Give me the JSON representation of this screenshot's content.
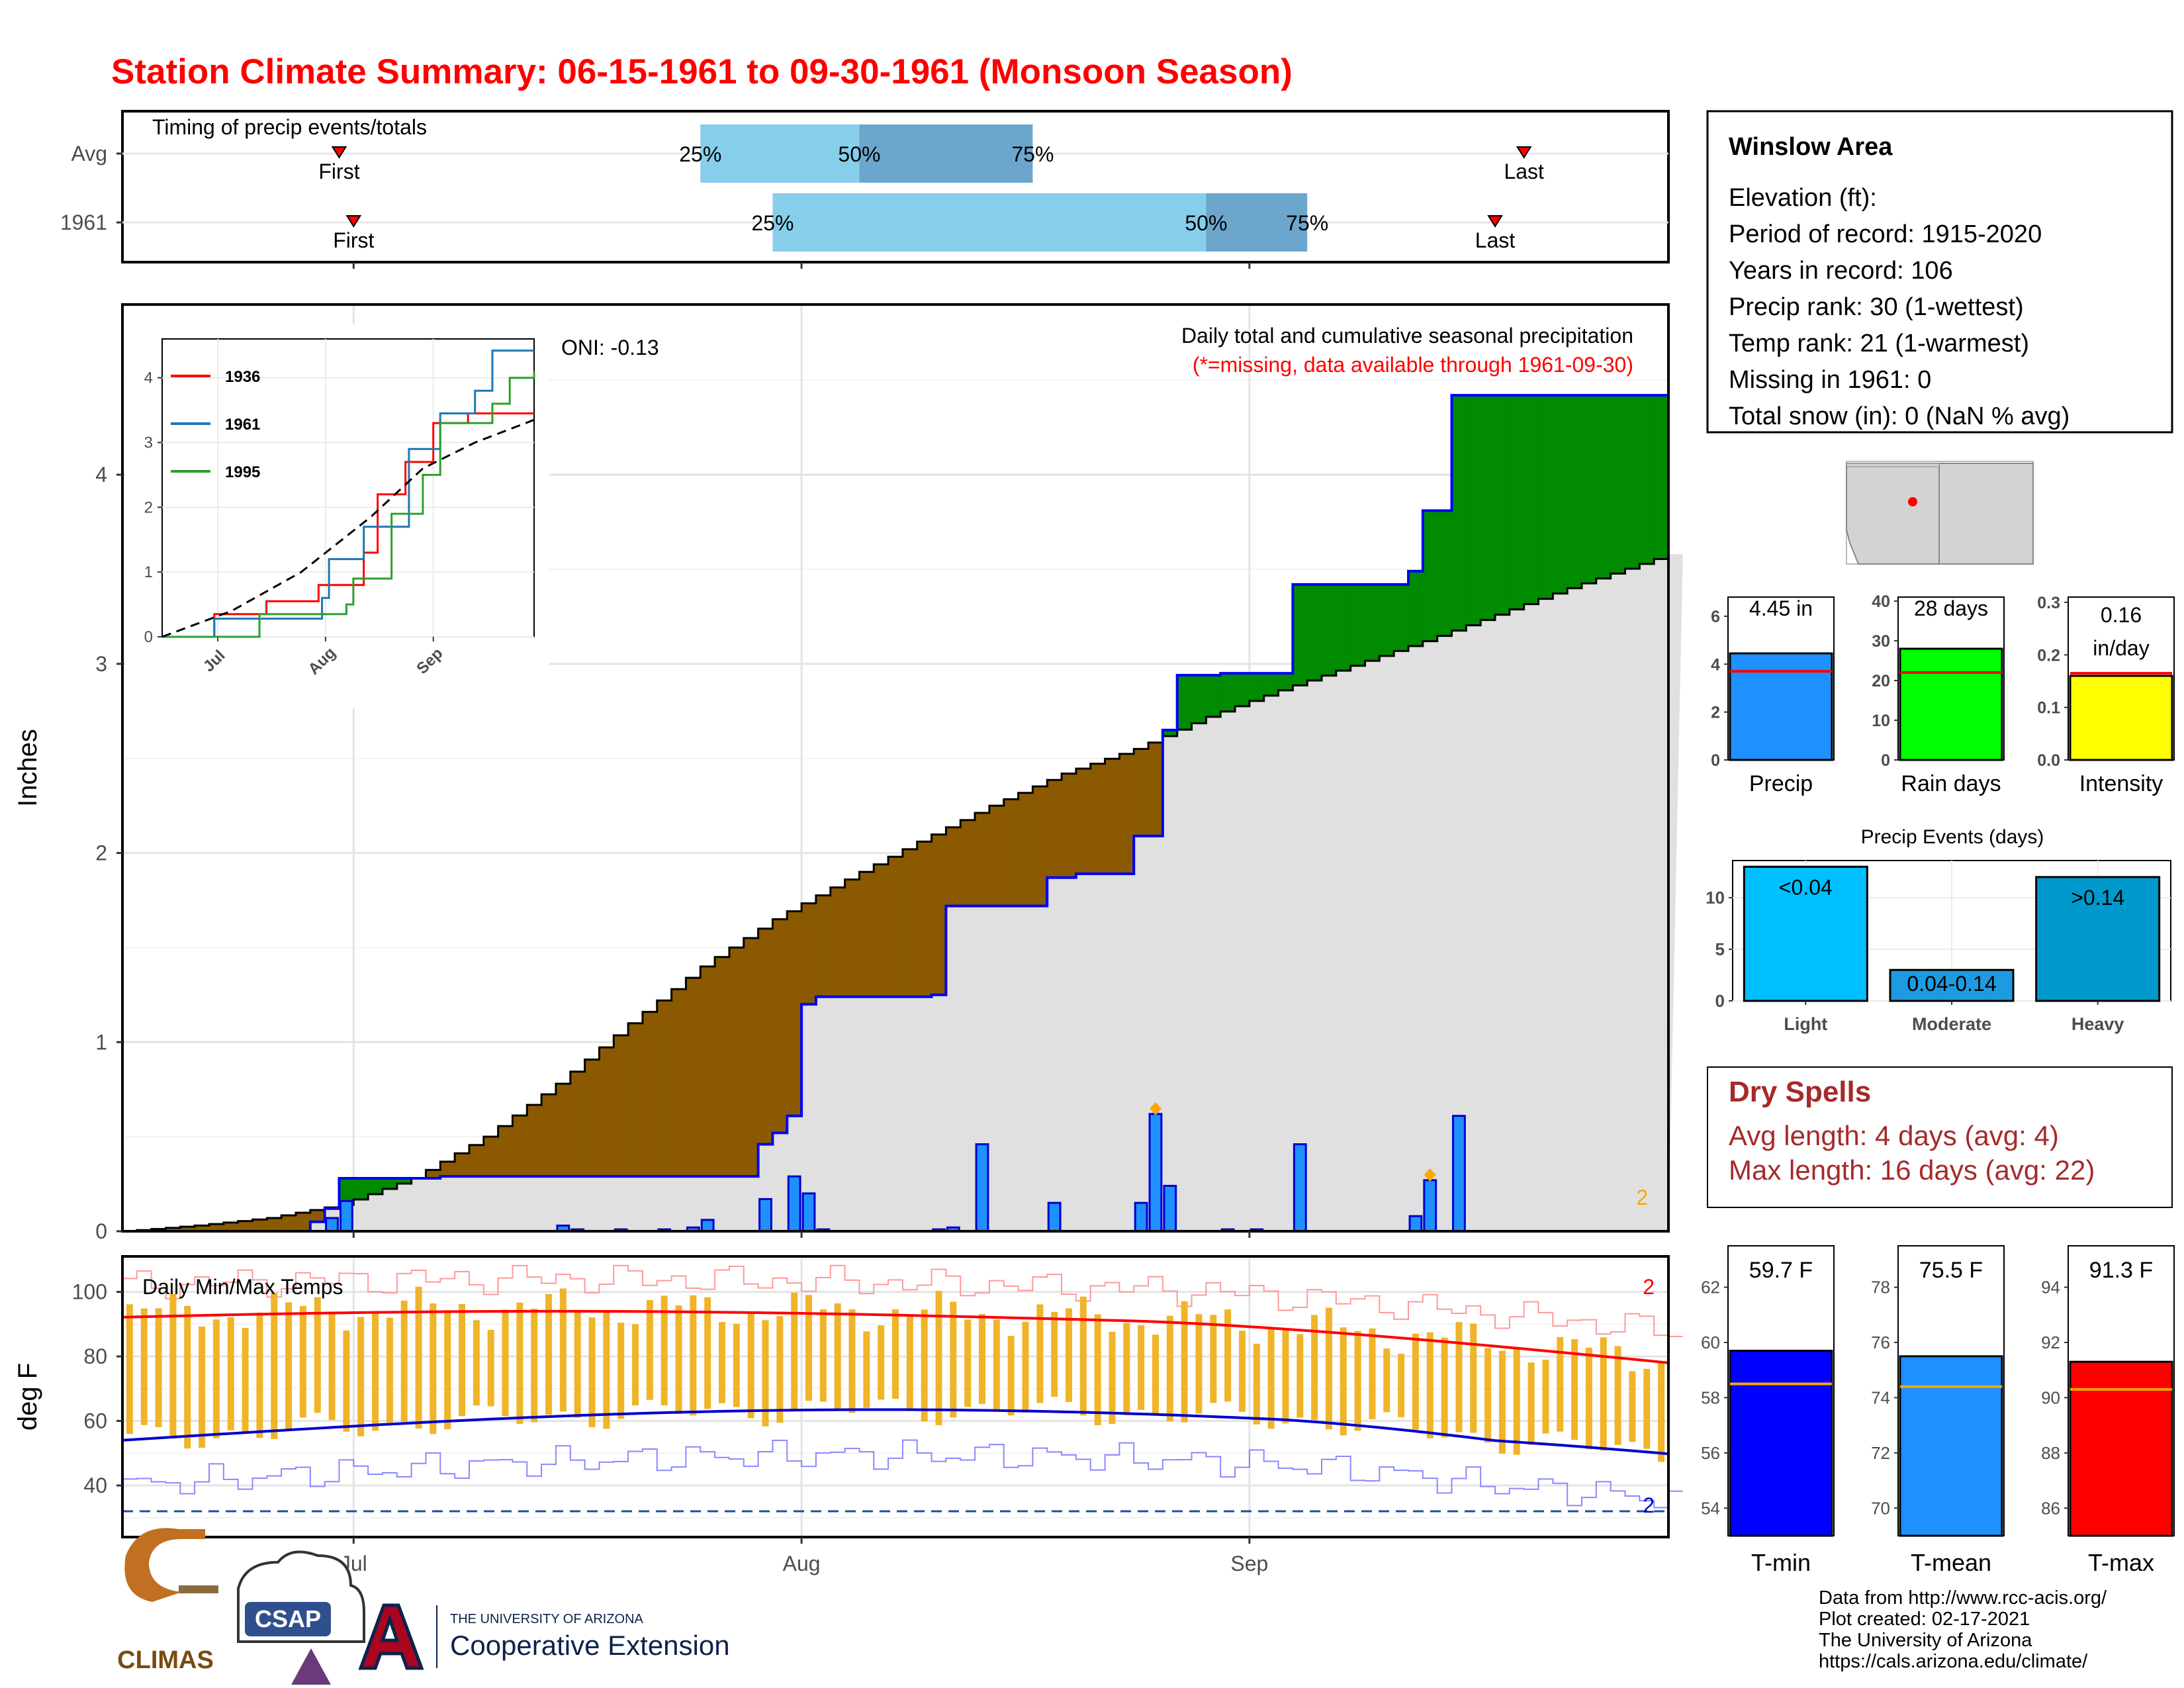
{
  "title": "Station Climate Summary: 06-15-1961 to 09-30-1961 (Monsoon Season)",
  "timing_panel": {
    "label": "Timing of precip events/totals",
    "rows": [
      {
        "name": "Avg",
        "first": "2001-06-30",
        "q25": "2001-07-25",
        "q50": "2001-08-05",
        "q75": "2001-08-17",
        "last": "2001-09-20",
        "first_label": "First",
        "last_label": "Last"
      },
      {
        "name": "1961",
        "first": "2001-07-01",
        "q25": "2001-07-30",
        "q50": "2001-08-29",
        "q75": "2001-09-05",
        "last": "2001-09-18",
        "first_label": "First",
        "last_label": "Last"
      }
    ],
    "pct_labels": [
      "25%",
      "50%",
      "75%"
    ],
    "colors": {
      "lower": "#87CEEB",
      "upper": "#6CA6CD",
      "marker": "#FF0000"
    }
  },
  "station_box": {
    "name": "Winslow Area",
    "lines": [
      "Elevation (ft):",
      "Period of record: 1915-2020",
      "Years in record: 106",
      "Precip rank: 30 (1-wettest)",
      "Temp rank: 21 (1-warmest)",
      "Missing in 1961: 0",
      "Total snow (in): 0 (NaN % avg)"
    ]
  },
  "precip_panel": {
    "ylabel": "Inches",
    "header": "Daily total and cumulative seasonal precipitation",
    "subheader": "(*=missing, data available through 1961-09-30)",
    "oni": "ONI: -0.13",
    "corner_note": "2",
    "colors": {
      "observed_line": "#0000FF",
      "avg_line": "#000000",
      "above": "#008B00",
      "below": "#8B5A00",
      "fill": "#E0E0E0",
      "bars": "#1E90FF",
      "marker": "#FFA500"
    }
  },
  "inset": {
    "series": [
      {
        "name": "1936",
        "color": "#FF0000"
      },
      {
        "name": "1961",
        "color": "#1F77B4"
      },
      {
        "name": "1995",
        "color": "#2CA02C"
      }
    ]
  },
  "stat_bars": [
    {
      "key": "precip",
      "label": "Precip",
      "value_text": "4.45 in",
      "value": 4.45,
      "avg": 3.7,
      "ymax": 6.8,
      "ticks": [
        0,
        2,
        4,
        6
      ],
      "color": "#1E90FF",
      "avg_color": "#FF0000"
    },
    {
      "key": "raindays",
      "label": "Rain days",
      "value_text": "28 days",
      "value": 28,
      "avg": 22,
      "ymax": 41,
      "ticks": [
        0,
        10,
        20,
        30,
        40
      ],
      "color": "#00FF00",
      "avg_color": "#FF0000"
    },
    {
      "key": "intensity",
      "label": "Intensity",
      "value_text": "0.16\nin/day",
      "value": 0.16,
      "avg": 0.165,
      "ymax": 0.31,
      "ticks": [
        "0.0",
        "0.1",
        "0.2",
        "0.3"
      ],
      "color": "#FFFF00",
      "avg_color": "#FF0000"
    }
  ],
  "events_panel": {
    "title": "Precip Events (days)",
    "categories": [
      "Light",
      "Moderate",
      "Heavy"
    ],
    "values": [
      13,
      3,
      12
    ],
    "bar_labels": [
      "<0.04",
      "0.04-0.14",
      ">0.14"
    ],
    "ticks": [
      0,
      5,
      10
    ],
    "colors": [
      "#00BFFF",
      "#1E9BE0",
      "#0099CC"
    ]
  },
  "dry_spells": {
    "title": "Dry Spells",
    "lines": [
      "Avg length: 4 days (avg: 4)",
      "Max length: 16 days (avg: 22)"
    ],
    "color": "#A52A2A"
  },
  "temp_panel": {
    "ylabel": "deg F",
    "label": "Daily Min/Max Temps",
    "corner_top": "2",
    "corner_bottom": "2",
    "ticks": [
      40,
      60,
      80,
      100
    ],
    "x_ticks": [
      "Jul",
      "Aug",
      "Sep"
    ],
    "colors": {
      "bars": "#F0B429",
      "max_avg": "#FF0000",
      "min_avg": "#0000CD",
      "max_rec": "#FF9999",
      "min_rec": "#8888FF",
      "freeze": "#1F4E9E"
    }
  },
  "temp_bars": [
    {
      "key": "tmin",
      "label": "T-min",
      "value_text": "59.7 F",
      "value": 59.7,
      "avg": 58.5,
      "ylim": [
        53,
        63.5
      ],
      "ticks": [
        54,
        56,
        58,
        60,
        62
      ],
      "color": "#0000FF",
      "avg_color": "#FFA500"
    },
    {
      "key": "tmean",
      "label": "T-mean",
      "value_text": "75.5 F",
      "value": 75.5,
      "avg": 74.4,
      "ylim": [
        69,
        79.5
      ],
      "ticks": [
        70,
        72,
        74,
        76,
        78
      ],
      "color": "#1E90FF",
      "avg_color": "#FFA500"
    },
    {
      "key": "tmax",
      "label": "T-max",
      "value_text": "91.3 F",
      "value": 91.3,
      "avg": 90.3,
      "ylim": [
        85,
        95.5
      ],
      "ticks": [
        86,
        88,
        90,
        92,
        94
      ],
      "color": "#FF0000",
      "avg_color": "#FFA500"
    }
  ],
  "footer": {
    "lines": [
      "Data from http://www.rcc-acis.org/",
      "Plot created: 02-17-2021",
      "The University of Arizona",
      "https://cals.arizona.edu/climate/"
    ],
    "logos": {
      "climas": "CLIMAS",
      "csap": "CSAP",
      "ua_small": "THE UNIVERSITY OF ARIZONA",
      "ua_big": "Cooperative Extension"
    }
  },
  "chart_data": {
    "type": "area",
    "title": "Daily total and cumulative seasonal precipitation",
    "ylabel": "Inches",
    "x_dates": [
      "1961-06-15",
      "1961-09-30"
    ],
    "x_ticks": [
      "Jul",
      "Aug",
      "Sep"
    ],
    "ylim": [
      0,
      4.9
    ],
    "cumulative_observed": [
      [
        "06-15",
        0
      ],
      [
        "06-28",
        0.05
      ],
      [
        "06-29",
        0.12
      ],
      [
        "06-30",
        0.28
      ],
      [
        "07-05",
        0.28
      ],
      [
        "07-07",
        0.29
      ],
      [
        "07-15",
        0.29
      ],
      [
        "07-29",
        0.46
      ],
      [
        "07-30",
        0.52
      ],
      [
        "07-31",
        0.61
      ],
      [
        "08-01",
        1.2
      ],
      [
        "08-02",
        1.24
      ],
      [
        "08-09",
        1.24
      ],
      [
        "08-10",
        1.25
      ],
      [
        "08-11",
        1.72
      ],
      [
        "08-17",
        1.72
      ],
      [
        "08-18",
        1.87
      ],
      [
        "08-20",
        1.89
      ],
      [
        "08-24",
        2.09
      ],
      [
        "08-26",
        2.65
      ],
      [
        "08-27",
        2.94
      ],
      [
        "08-30",
        2.95
      ],
      [
        "09-03",
        2.95
      ],
      [
        "09-04",
        3.42
      ],
      [
        "09-12",
        3.49
      ],
      [
        "09-13",
        3.81
      ],
      [
        "09-15",
        4.42
      ],
      [
        "09-30",
        4.42
      ]
    ],
    "daily_precip": [
      [
        "06-29",
        0.07
      ],
      [
        "06-30",
        0.16
      ],
      [
        "07-15",
        0.03
      ],
      [
        "07-16",
        0.01
      ],
      [
        "07-19",
        0.01
      ],
      [
        "07-22",
        0.01
      ],
      [
        "07-24",
        0.02
      ],
      [
        "07-25",
        0.06
      ],
      [
        "07-29",
        0.17
      ],
      [
        "07-31",
        0.29
      ],
      [
        "08-01",
        0.2
      ],
      [
        "08-02",
        0.01
      ],
      [
        "08-10",
        0.01
      ],
      [
        "08-11",
        0.02
      ],
      [
        "08-13",
        0.46
      ],
      [
        "08-18",
        0.15
      ],
      [
        "08-24",
        0.15
      ],
      [
        "08-25",
        0.62
      ],
      [
        "08-26",
        0.24
      ],
      [
        "08-30",
        0.01
      ],
      [
        "09-01",
        0.01
      ],
      [
        "09-04",
        0.46
      ],
      [
        "09-12",
        0.08
      ],
      [
        "09-13",
        0.27
      ],
      [
        "09-15",
        0.61
      ]
    ],
    "cumulative_average": [
      [
        "06-15",
        0
      ],
      [
        "06-20",
        0.03
      ],
      [
        "06-25",
        0.07
      ],
      [
        "06-30",
        0.14
      ],
      [
        "07-05",
        0.28
      ],
      [
        "07-10",
        0.5
      ],
      [
        "07-15",
        0.78
      ],
      [
        "07-20",
        1.1
      ],
      [
        "07-25",
        1.4
      ],
      [
        "07-30",
        1.65
      ],
      [
        "08-04",
        1.86
      ],
      [
        "08-09",
        2.06
      ],
      [
        "08-14",
        2.25
      ],
      [
        "08-19",
        2.42
      ],
      [
        "08-24",
        2.55
      ],
      [
        "08-29",
        2.72
      ],
      [
        "09-03",
        2.86
      ],
      [
        "09-08",
        2.99
      ],
      [
        "09-13",
        3.12
      ],
      [
        "09-18",
        3.26
      ],
      [
        "09-23",
        3.4
      ],
      [
        "09-30",
        3.58
      ]
    ],
    "inset_series": [
      {
        "name": "1936",
        "values": [
          [
            0,
            0
          ],
          [
            15,
            0.35
          ],
          [
            30,
            0.55
          ],
          [
            45,
            0.8
          ],
          [
            58,
            1.3
          ],
          [
            62,
            2.2
          ],
          [
            70,
            2.7
          ],
          [
            78,
            3.3
          ],
          [
            88,
            3.45
          ],
          [
            107,
            3.45
          ]
        ]
      },
      {
        "name": "1961",
        "values": [
          [
            0,
            0
          ],
          [
            15,
            0.28
          ],
          [
            46,
            0.6
          ],
          [
            48,
            1.2
          ],
          [
            58,
            1.7
          ],
          [
            71,
            2.9
          ],
          [
            80,
            3.45
          ],
          [
            90,
            3.8
          ],
          [
            95,
            4.42
          ],
          [
            107,
            4.42
          ]
        ]
      },
      {
        "name": "1995",
        "values": [
          [
            0,
            0
          ],
          [
            25,
            0
          ],
          [
            28,
            0.35
          ],
          [
            53,
            0.5
          ],
          [
            55,
            0.9
          ],
          [
            66,
            1.9
          ],
          [
            75,
            2.5
          ],
          [
            80,
            3.3
          ],
          [
            95,
            3.6
          ],
          [
            100,
            4.0
          ],
          [
            107,
            4.1
          ]
        ]
      }
    ],
    "inset_average": [
      [
        0,
        0
      ],
      [
        20,
        0.4
      ],
      [
        40,
        1.0
      ],
      [
        60,
        1.85
      ],
      [
        75,
        2.6
      ],
      [
        90,
        3.0
      ],
      [
        107,
        3.35
      ]
    ],
    "inset_yticks": [
      0,
      1,
      2,
      3,
      4
    ],
    "inset_xticks": [
      "Jul",
      "Aug",
      "Sep"
    ]
  }
}
